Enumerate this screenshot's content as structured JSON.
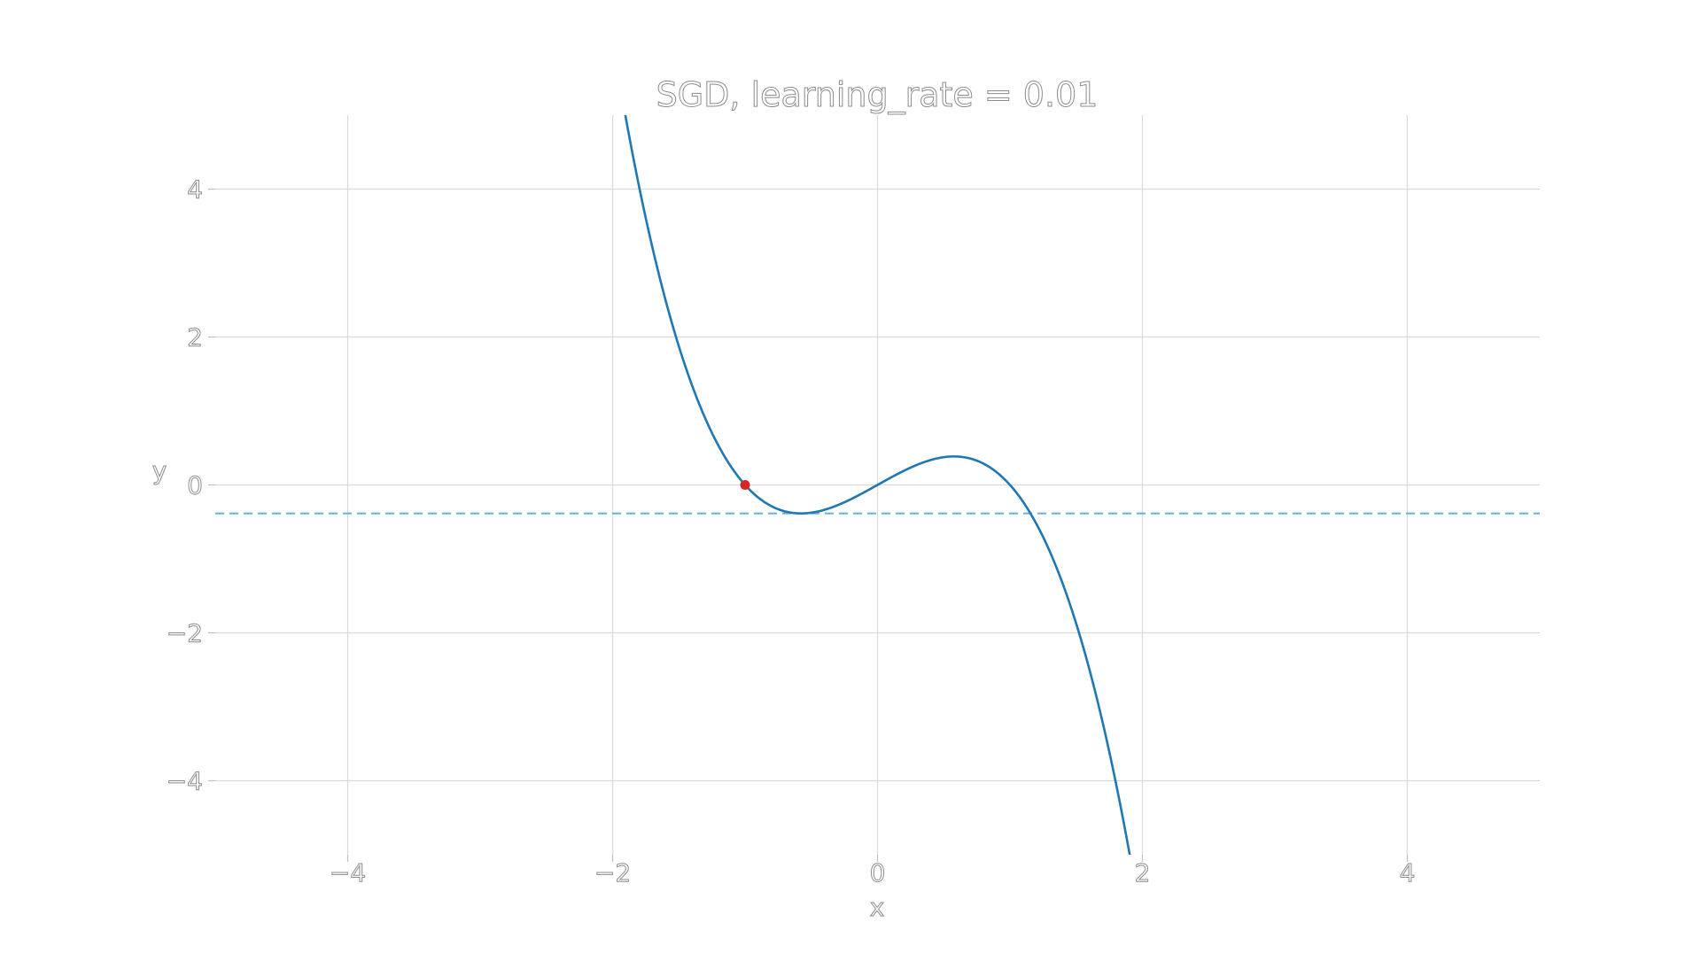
{
  "chart_data": {
    "type": "line",
    "title": "SGD, learning_rate = 0.01",
    "xlabel": "x",
    "ylabel": "y",
    "xlim": [
      -5,
      5
    ],
    "ylim": [
      -5,
      5
    ],
    "x_ticks": [
      -4,
      -2,
      0,
      2,
      4
    ],
    "y_ticks": [
      -4,
      -2,
      0,
      2,
      4
    ],
    "grid": true,
    "series": [
      {
        "function": "y = x - x^3",
        "color": "#1f77b4",
        "x_range": [
          -1.95,
          1.95
        ]
      }
    ],
    "reference_line": {
      "style": "dashed",
      "y": -0.385,
      "color": "#6baed6"
    },
    "current_point": {
      "x": -1,
      "y": 0,
      "color": "#d62728"
    }
  }
}
